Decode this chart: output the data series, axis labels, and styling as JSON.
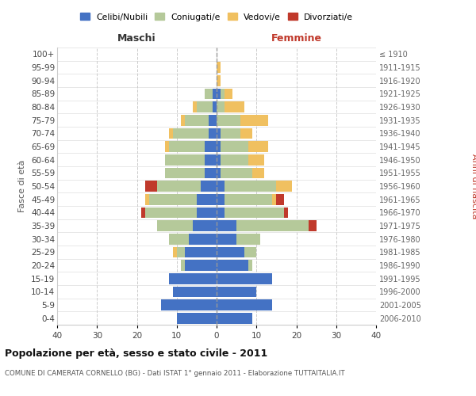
{
  "age_groups": [
    "0-4",
    "5-9",
    "10-14",
    "15-19",
    "20-24",
    "25-29",
    "30-34",
    "35-39",
    "40-44",
    "45-49",
    "50-54",
    "55-59",
    "60-64",
    "65-69",
    "70-74",
    "75-79",
    "80-84",
    "85-89",
    "90-94",
    "95-99",
    "100+"
  ],
  "birth_years": [
    "2006-2010",
    "2001-2005",
    "1996-2000",
    "1991-1995",
    "1986-1990",
    "1981-1985",
    "1976-1980",
    "1971-1975",
    "1966-1970",
    "1961-1965",
    "1956-1960",
    "1951-1955",
    "1946-1950",
    "1941-1945",
    "1936-1940",
    "1931-1935",
    "1926-1930",
    "1921-1925",
    "1916-1920",
    "1911-1915",
    "≤ 1910"
  ],
  "males": {
    "celibi": [
      10,
      14,
      11,
      12,
      8,
      8,
      7,
      6,
      5,
      5,
      4,
      3,
      3,
      3,
      2,
      2,
      1,
      1,
      0,
      0,
      0
    ],
    "coniugati": [
      0,
      0,
      0,
      0,
      1,
      2,
      5,
      9,
      13,
      12,
      11,
      10,
      10,
      9,
      9,
      6,
      4,
      2,
      0,
      0,
      0
    ],
    "vedovi": [
      0,
      0,
      0,
      0,
      0,
      1,
      0,
      0,
      0,
      1,
      0,
      0,
      0,
      1,
      1,
      1,
      1,
      0,
      0,
      0,
      0
    ],
    "divorziati": [
      0,
      0,
      0,
      0,
      0,
      0,
      0,
      0,
      1,
      0,
      3,
      0,
      0,
      0,
      0,
      0,
      0,
      0,
      0,
      0,
      0
    ]
  },
  "females": {
    "nubili": [
      9,
      14,
      10,
      14,
      8,
      7,
      5,
      5,
      2,
      2,
      2,
      1,
      1,
      1,
      1,
      0,
      0,
      1,
      0,
      0,
      0
    ],
    "coniugate": [
      0,
      0,
      0,
      0,
      1,
      3,
      6,
      18,
      15,
      12,
      13,
      8,
      7,
      7,
      5,
      6,
      2,
      1,
      0,
      0,
      0
    ],
    "vedove": [
      0,
      0,
      0,
      0,
      0,
      0,
      0,
      0,
      0,
      1,
      4,
      3,
      4,
      5,
      3,
      7,
      5,
      2,
      1,
      1,
      0
    ],
    "divorziate": [
      0,
      0,
      0,
      0,
      0,
      0,
      0,
      2,
      1,
      2,
      0,
      0,
      0,
      0,
      0,
      0,
      0,
      0,
      0,
      0,
      0
    ]
  },
  "colors": {
    "celibi": "#4472c4",
    "coniugati": "#b5c99a",
    "vedovi": "#f0c060",
    "divorziati": "#c0392b"
  },
  "xlim": 40,
  "title": "Popolazione per età, sesso e stato civile - 2011",
  "subtitle": "COMUNE DI CAMERATA CORNELLO (BG) - Dati ISTAT 1° gennaio 2011 - Elaborazione TUTTAITALIA.IT",
  "ylabel_left": "Fasce di età",
  "ylabel_right": "Anni di nascita",
  "legend_labels": [
    "Celibi/Nubili",
    "Coniugati/e",
    "Vedovi/e",
    "Divorziati/e"
  ],
  "maschi_label": "Maschi",
  "femmine_label": "Femmine",
  "maschi_color": "#333333",
  "femmine_color": "#c0392b"
}
